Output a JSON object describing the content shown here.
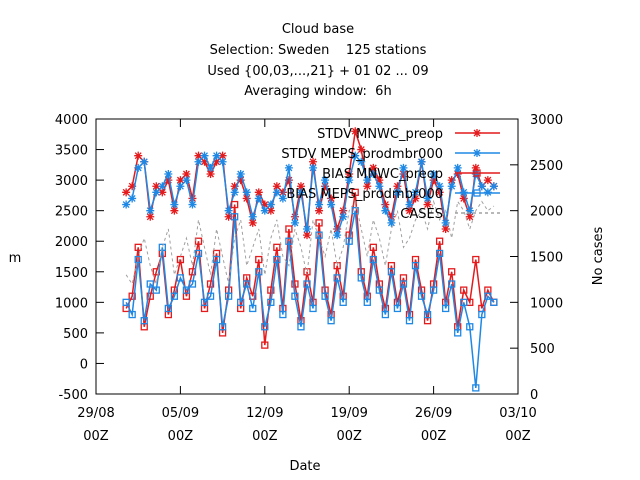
{
  "chart_data": {
    "type": "line",
    "title": "Cloud base",
    "subtitle": [
      "Selection: Sweden    125 stations",
      "Used {00,03,...,21} + 01 02 ... 09",
      "Averaging window:  6h"
    ],
    "x_label": "Date",
    "y_label": "m",
    "y2_label": "No cases",
    "legend": "top right",
    "xlim": [
      0,
      35
    ],
    "xticks": [
      {
        "value": 0,
        "label": "29/08\n00Z"
      },
      {
        "value": 7,
        "label": "05/09\n00Z"
      },
      {
        "value": 14,
        "label": "12/09\n00Z"
      },
      {
        "value": 21,
        "label": "19/09\n00Z"
      },
      {
        "value": 28,
        "label": "26/09\n00Z"
      },
      {
        "value": 35,
        "label": "03/10\n00Z"
      }
    ],
    "ylim": [
      -500,
      4000
    ],
    "yticks": [
      -500,
      0,
      500,
      1000,
      1500,
      2000,
      2500,
      3000,
      3500,
      4000
    ],
    "y2lim": [
      0,
      3000
    ],
    "y2ticks": [
      0,
      500,
      1000,
      1500,
      2000,
      2500,
      3000
    ],
    "x": [
      2.5,
      3,
      3.5,
      4,
      4.5,
      5,
      5.5,
      6,
      6.5,
      7,
      7.5,
      8,
      8.5,
      9,
      9.5,
      10,
      10.5,
      11,
      11.5,
      12,
      12.5,
      13,
      13.5,
      14,
      14.5,
      15,
      15.5,
      16,
      16.5,
      17,
      17.5,
      18,
      18.5,
      19,
      19.5,
      20,
      20.5,
      21,
      21.5,
      22,
      22.5,
      23,
      23.5,
      24,
      24.5,
      25,
      25.5,
      26,
      26.5,
      27,
      27.5,
      28,
      28.5,
      29,
      29.5,
      30,
      30.5,
      31,
      31.5,
      32,
      32.5,
      33
    ],
    "series": [
      {
        "name": "STDV MNWC_preop",
        "color": "#e41a1c",
        "marker": "x",
        "dash": "solid",
        "values": [
          2800,
          2900,
          3400,
          3300,
          2400,
          2900,
          2800,
          3000,
          2500,
          3000,
          3100,
          2700,
          3400,
          3300,
          3100,
          3300,
          3400,
          2400,
          2900,
          3000,
          2700,
          2300,
          2800,
          2600,
          2500,
          2900,
          2800,
          3000,
          2400,
          2900,
          2100,
          3300,
          2500,
          2900,
          2700,
          2200,
          2500,
          3100,
          3800,
          3500,
          2900,
          3200,
          3000,
          2600,
          2400,
          2900,
          3100,
          2500,
          2700,
          3300,
          2600,
          3000,
          2800,
          2200,
          3000,
          3100,
          2700,
          2400,
          3200,
          2900,
          3000,
          2900
        ]
      },
      {
        "name": "STDV MEPS_prodmbr000",
        "color": "#1e88e5",
        "marker": "x",
        "dash": "solid",
        "values": [
          2600,
          2700,
          3200,
          3300,
          2500,
          2800,
          2900,
          3100,
          2600,
          2900,
          3000,
          2600,
          3300,
          3400,
          3200,
          3400,
          3300,
          2500,
          2800,
          3100,
          2800,
          2400,
          2700,
          2500,
          2600,
          2800,
          2700,
          3200,
          2300,
          2800,
          2200,
          3200,
          2600,
          3000,
          2600,
          2100,
          2400,
          3000,
          3400,
          3300,
          3000,
          3100,
          2900,
          2500,
          2300,
          2800,
          3200,
          2600,
          2800,
          3300,
          2700,
          3100,
          2900,
          2300,
          2900,
          3200,
          2800,
          2500,
          3100,
          2900,
          2800,
          2900
        ]
      },
      {
        "name": "BIAS MNWC_preop",
        "color": "#e41a1c",
        "marker": "square",
        "dash": "solid",
        "values": [
          900,
          1100,
          1900,
          600,
          1100,
          1500,
          1800,
          800,
          1200,
          1700,
          1100,
          1500,
          2000,
          900,
          1300,
          1800,
          500,
          1200,
          2600,
          900,
          1400,
          1100,
          1700,
          300,
          1200,
          1900,
          900,
          2200,
          1300,
          700,
          1500,
          1000,
          2300,
          1200,
          800,
          1600,
          1100,
          2100,
          2800,
          1500,
          1100,
          1900,
          1300,
          900,
          1600,
          1000,
          1400,
          800,
          1700,
          1200,
          700,
          1300,
          2000,
          1000,
          1500,
          600,
          1200,
          1000,
          1700,
          900,
          1200,
          1000
        ]
      },
      {
        "name": "BIAS MEPS_prodmbr000",
        "color": "#1e88e5",
        "marker": "square",
        "dash": "solid",
        "values": [
          1000,
          800,
          1700,
          700,
          1300,
          1200,
          1900,
          900,
          1100,
          1400,
          1200,
          1300,
          1800,
          1000,
          1100,
          1700,
          600,
          1100,
          2400,
          1000,
          1300,
          900,
          1500,
          600,
          1000,
          1700,
          800,
          2000,
          1100,
          600,
          1300,
          900,
          2100,
          1100,
          700,
          1400,
          1000,
          2000,
          2500,
          1400,
          1000,
          1700,
          1200,
          800,
          1500,
          900,
          1300,
          700,
          1600,
          1100,
          800,
          1200,
          1800,
          900,
          1300,
          500,
          1000,
          600,
          -400,
          800,
          1100,
          1000
        ]
      },
      {
        "name": "CASES",
        "color": "#a0a0a0",
        "marker": "none",
        "dash": "dashed",
        "axis": "y2",
        "values": [
          1300,
          1200,
          1500,
          1700,
          1400,
          1200,
          1600,
          1800,
          1300,
          1500,
          1700,
          1400,
          1900,
          1600,
          1300,
          1800,
          1500,
          1200,
          1700,
          1900,
          1400,
          1600,
          1800,
          1300,
          1700,
          1900,
          1500,
          1400,
          1800,
          1600,
          1300,
          1900,
          1700,
          1500,
          1800,
          1400,
          1600,
          2000,
          2100,
          1800,
          1500,
          1900,
          1700,
          1400,
          1800,
          2000,
          1600,
          1700,
          1900,
          2000,
          1800,
          2100,
          1900,
          2000,
          1700,
          2100,
          2000,
          1800,
          2000,
          2100,
          2000,
          2050
        ]
      }
    ]
  }
}
